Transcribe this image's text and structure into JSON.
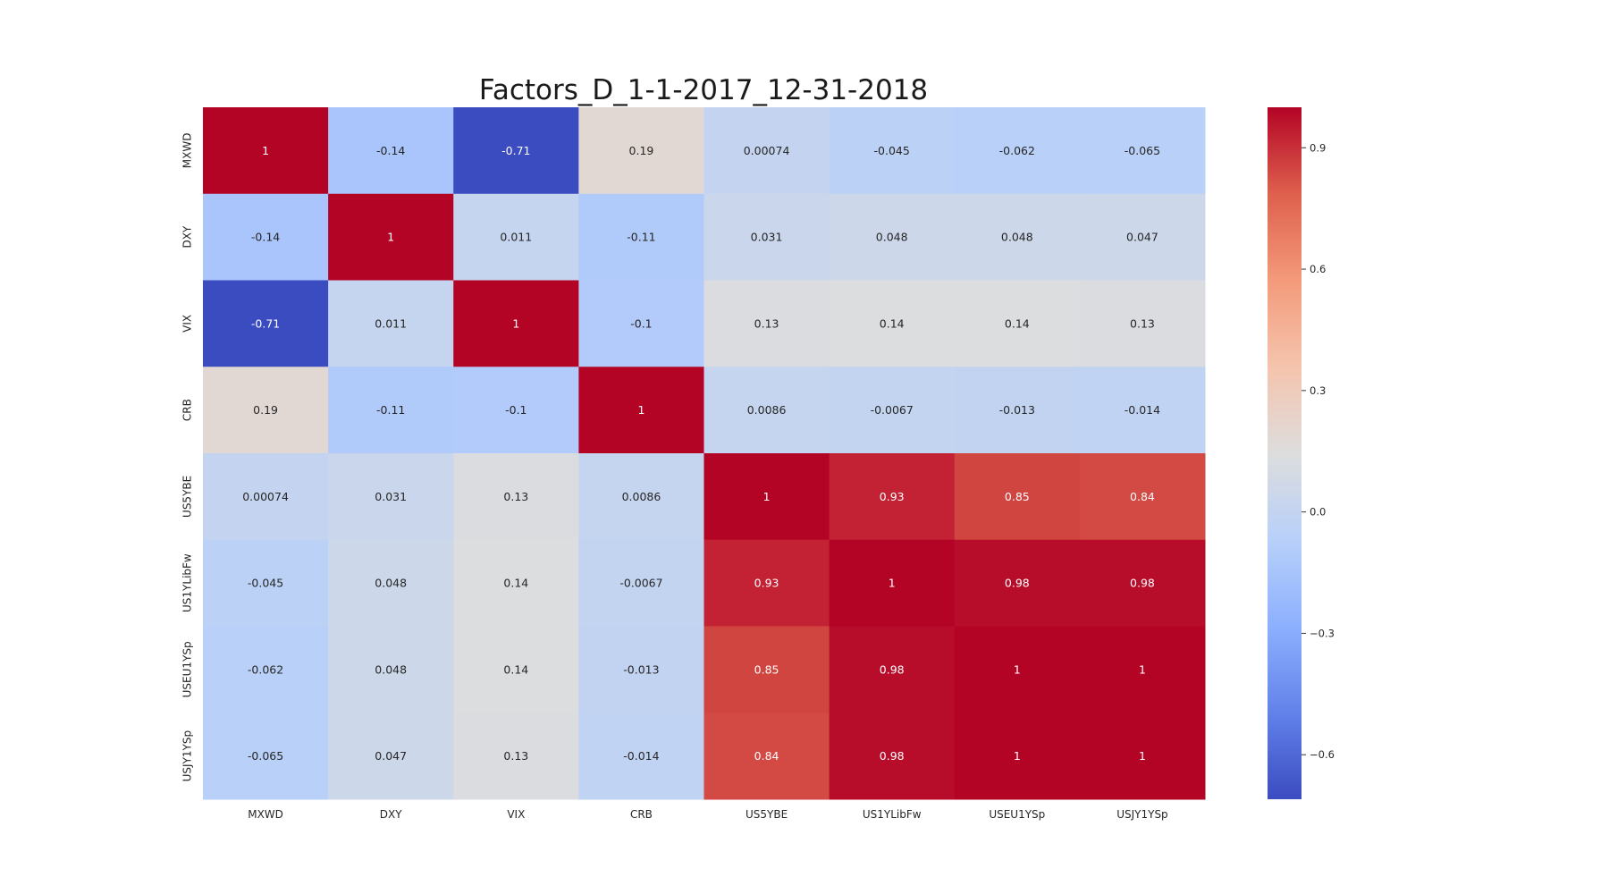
{
  "chart_data": {
    "type": "heatmap",
    "title": "Factors_D_1-1-2017_12-31-2018",
    "x_labels": [
      "MXWD",
      "DXY",
      "VIX",
      "CRB",
      "US5YBE",
      "US1YLibFw",
      "USEU1YSp",
      "USJY1YSp"
    ],
    "y_labels": [
      "MXWD",
      "DXY",
      "VIX",
      "CRB",
      "US5YBE",
      "US1YLibFw",
      "USEU1YSp",
      "USJY1YSp"
    ],
    "values": [
      [
        1,
        -0.14,
        -0.71,
        0.19,
        0.00074,
        -0.045,
        -0.062,
        -0.065
      ],
      [
        -0.14,
        1,
        0.011,
        -0.11,
        0.031,
        0.048,
        0.048,
        0.047
      ],
      [
        -0.71,
        0.011,
        1,
        -0.1,
        0.13,
        0.14,
        0.14,
        0.13
      ],
      [
        0.19,
        -0.11,
        -0.1,
        1,
        0.0086,
        -0.0067,
        -0.013,
        -0.014
      ],
      [
        0.00074,
        0.031,
        0.13,
        0.0086,
        1,
        0.93,
        0.85,
        0.84
      ],
      [
        -0.045,
        0.048,
        0.14,
        -0.0067,
        0.93,
        1,
        0.98,
        0.98
      ],
      [
        -0.062,
        0.048,
        0.14,
        -0.013,
        0.85,
        0.98,
        1,
        1
      ],
      [
        -0.065,
        0.047,
        0.13,
        -0.014,
        0.84,
        0.98,
        1,
        1
      ]
    ],
    "colormap": "coolwarm",
    "vmin": -0.71,
    "vmax": 1,
    "colorbar_ticks": [
      0.9,
      0.6,
      0.3,
      0.0,
      -0.3,
      -0.6
    ],
    "colorbar_tick_labels": [
      "0.9",
      "0.6",
      "0.3",
      "0.0",
      "−0.3",
      "−0.6"
    ],
    "colorbar_position": "right",
    "annotations": true,
    "grid": false
  }
}
